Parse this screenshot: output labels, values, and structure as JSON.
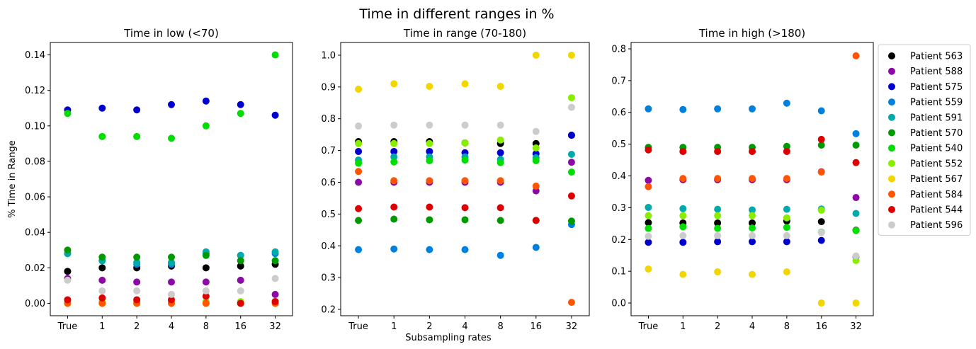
{
  "suptitle": "Time in different ranges in %",
  "shared_xlabel": "Subsampling rates",
  "legend_position": "right, outside third panel",
  "chart_data": [
    {
      "type": "scatter",
      "title": "Time in low (<70)",
      "ylabel": "% Time in Range",
      "xlabel": "",
      "categories": [
        "True",
        "1",
        "2",
        "4",
        "8",
        "16",
        "32"
      ],
      "ylim": [
        -0.007,
        0.147
      ],
      "yticks": [
        "0.00",
        "0.02",
        "0.04",
        "0.06",
        "0.08",
        "0.10",
        "0.12",
        "0.14"
      ],
      "ytick_values": [
        0,
        0.02,
        0.04,
        0.06,
        0.08,
        0.1,
        0.12,
        0.14
      ],
      "grid": false,
      "series": [
        {
          "name": "Patient 563",
          "color": "#000000",
          "values": [
            0.018,
            0.02,
            0.02,
            0.021,
            0.02,
            0.021,
            0.022
          ]
        },
        {
          "name": "Patient 588",
          "color": "#8b0aa5",
          "values": [
            0.014,
            0.013,
            0.012,
            0.012,
            0.012,
            0.013,
            0.005
          ]
        },
        {
          "name": "Patient 575",
          "color": "#0000cc",
          "values": [
            0.109,
            0.11,
            0.109,
            0.112,
            0.114,
            0.112,
            0.106
          ]
        },
        {
          "name": "Patient 559",
          "color": "#0080dd",
          "values": [
            0.028,
            0.024,
            0.022,
            0.022,
            0.028,
            0.027,
            0.028
          ]
        },
        {
          "name": "Patient 591",
          "color": "#00aaaa",
          "values": [
            0.028,
            0.024,
            0.023,
            0.023,
            0.029,
            0.027,
            0.029
          ]
        },
        {
          "name": "Patient 570",
          "color": "#009900",
          "values": [
            0.03,
            0.026,
            0.026,
            0.026,
            0.027,
            0.024,
            0.024
          ]
        },
        {
          "name": "Patient 540",
          "color": "#00dd00",
          "values": [
            0.107,
            0.094,
            0.094,
            0.093,
            0.1,
            0.107,
            0.14
          ]
        },
        {
          "name": "Patient 552",
          "color": "#88ee00",
          "values": [
            0.001,
            0.001,
            0.001,
            0.001,
            0.001,
            0.001,
            0.001
          ]
        },
        {
          "name": "Patient 567",
          "color": "#f2d600",
          "values": [
            0.0,
            0.0,
            0.0,
            0.0,
            0.0,
            0.0,
            0.0
          ]
        },
        {
          "name": "Patient 584",
          "color": "#ff5500",
          "values": [
            0.0,
            0.0,
            0.0,
            0.0,
            0.0,
            0.0,
            0.0
          ]
        },
        {
          "name": "Patient 544",
          "color": "#dd0000",
          "values": [
            0.002,
            0.003,
            0.002,
            0.002,
            0.004,
            0.0,
            0.001
          ]
        },
        {
          "name": "Patient 596",
          "color": "#cccccc",
          "values": [
            0.013,
            0.007,
            0.007,
            0.005,
            0.007,
            0.007,
            0.014
          ]
        }
      ]
    },
    {
      "type": "scatter",
      "title": "Time in range (70-180)",
      "ylabel": "",
      "xlabel": "",
      "categories": [
        "True",
        "1",
        "2",
        "4",
        "8",
        "16",
        "32"
      ],
      "ylim": [
        0.18,
        1.04
      ],
      "yticks": [
        "0.2",
        "0.3",
        "0.4",
        "0.5",
        "0.6",
        "0.7",
        "0.8",
        "0.9",
        "1.0"
      ],
      "ytick_values": [
        0.2,
        0.3,
        0.4,
        0.5,
        0.6,
        0.7,
        0.8,
        0.9,
        1.0
      ],
      "grid": false,
      "series": [
        {
          "name": "Patient 563",
          "color": "#000000",
          "values": [
            0.728,
            0.728,
            0.728,
            0.724,
            0.722,
            0.722,
            0.748
          ]
        },
        {
          "name": "Patient 588",
          "color": "#8b0aa5",
          "values": [
            0.6,
            0.6,
            0.6,
            0.6,
            0.6,
            0.573,
            0.663
          ]
        },
        {
          "name": "Patient 575",
          "color": "#0000cc",
          "values": [
            0.697,
            0.697,
            0.697,
            0.693,
            0.693,
            0.69,
            0.748
          ]
        },
        {
          "name": "Patient 559",
          "color": "#0080dd",
          "values": [
            0.388,
            0.39,
            0.388,
            0.388,
            0.37,
            0.395,
            0.467
          ]
        },
        {
          "name": "Patient 591",
          "color": "#00aaaa",
          "values": [
            0.67,
            0.68,
            0.68,
            0.68,
            0.672,
            0.677,
            0.688
          ]
        },
        {
          "name": "Patient 570",
          "color": "#009900",
          "values": [
            0.48,
            0.484,
            0.482,
            0.482,
            0.48,
            0.48,
            0.478
          ]
        },
        {
          "name": "Patient 540",
          "color": "#00dd00",
          "values": [
            0.66,
            0.664,
            0.668,
            0.67,
            0.662,
            0.668,
            0.632
          ]
        },
        {
          "name": "Patient 552",
          "color": "#88ee00",
          "values": [
            0.722,
            0.722,
            0.722,
            0.724,
            0.733,
            0.708,
            0.866
          ]
        },
        {
          "name": "Patient 567",
          "color": "#f2d600",
          "values": [
            0.893,
            0.91,
            0.902,
            0.91,
            0.902,
            1.0,
            1.0
          ]
        },
        {
          "name": "Patient 584",
          "color": "#ff5500",
          "values": [
            0.634,
            0.605,
            0.605,
            0.605,
            0.605,
            0.588,
            0.222
          ]
        },
        {
          "name": "Patient 544",
          "color": "#dd0000",
          "values": [
            0.517,
            0.522,
            0.522,
            0.52,
            0.52,
            0.48,
            0.557
          ]
        },
        {
          "name": "Patient 596",
          "color": "#cccccc",
          "values": [
            0.777,
            0.78,
            0.78,
            0.78,
            0.78,
            0.76,
            0.836
          ]
        }
      ]
    },
    {
      "type": "scatter",
      "title": "Time in high (>180)",
      "ylabel": "",
      "xlabel": "",
      "categories": [
        "True",
        "1",
        "2",
        "4",
        "8",
        "16",
        "32"
      ],
      "ylim": [
        -0.04,
        0.82
      ],
      "yticks": [
        "0.0",
        "0.1",
        "0.2",
        "0.3",
        "0.4",
        "0.5",
        "0.6",
        "0.7",
        "0.8"
      ],
      "ytick_values": [
        0,
        0.1,
        0.2,
        0.3,
        0.4,
        0.5,
        0.6,
        0.7,
        0.8
      ],
      "grid": false,
      "series": [
        {
          "name": "Patient 563",
          "color": "#000000",
          "values": [
            0.253,
            0.252,
            0.252,
            0.252,
            0.258,
            0.256,
            0.229
          ]
        },
        {
          "name": "Patient 588",
          "color": "#8b0aa5",
          "values": [
            0.386,
            0.388,
            0.388,
            0.388,
            0.388,
            0.413,
            0.332
          ]
        },
        {
          "name": "Patient 575",
          "color": "#0000cc",
          "values": [
            0.191,
            0.191,
            0.193,
            0.193,
            0.193,
            0.197,
            0.146
          ]
        },
        {
          "name": "Patient 559",
          "color": "#0080dd",
          "values": [
            0.611,
            0.609,
            0.611,
            0.611,
            0.629,
            0.605,
            0.533
          ]
        },
        {
          "name": "Patient 591",
          "color": "#00aaaa",
          "values": [
            0.301,
            0.297,
            0.295,
            0.293,
            0.295,
            0.296,
            0.282
          ]
        },
        {
          "name": "Patient 570",
          "color": "#009900",
          "values": [
            0.49,
            0.49,
            0.49,
            0.49,
            0.493,
            0.497,
            0.497
          ]
        },
        {
          "name": "Patient 540",
          "color": "#00dd00",
          "values": [
            0.235,
            0.24,
            0.235,
            0.236,
            0.238,
            0.223,
            0.228
          ]
        },
        {
          "name": "Patient 552",
          "color": "#88ee00",
          "values": [
            0.275,
            0.275,
            0.275,
            0.275,
            0.268,
            0.292,
            0.134
          ]
        },
        {
          "name": "Patient 567",
          "color": "#f2d600",
          "values": [
            0.107,
            0.09,
            0.098,
            0.09,
            0.098,
            0.0,
            0.0
          ]
        },
        {
          "name": "Patient 584",
          "color": "#ff5500",
          "values": [
            0.366,
            0.392,
            0.392,
            0.392,
            0.392,
            0.412,
            0.778
          ]
        },
        {
          "name": "Patient 544",
          "color": "#dd0000",
          "values": [
            0.482,
            0.477,
            0.477,
            0.477,
            0.477,
            0.515,
            0.442
          ]
        },
        {
          "name": "Patient 596",
          "color": "#cccccc",
          "values": [
            0.21,
            0.212,
            0.212,
            0.212,
            0.212,
            0.222,
            0.148
          ]
        }
      ]
    }
  ]
}
